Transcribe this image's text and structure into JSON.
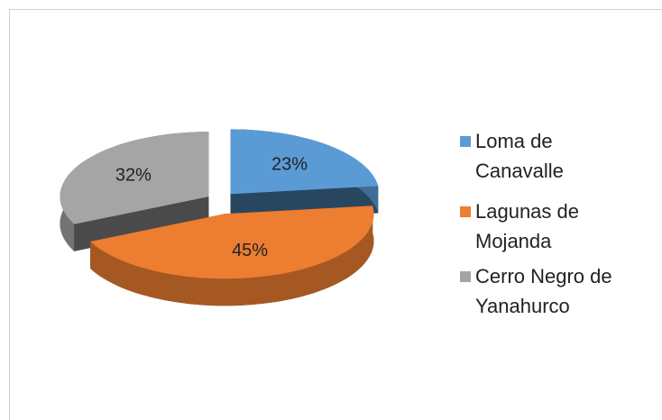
{
  "chart_data": {
    "type": "pie3d",
    "categories": [
      "Loma de Canavalle",
      "Lagunas de Mojanda",
      "Cerro Negro de Yanahurco"
    ],
    "values": [
      23,
      45,
      32
    ],
    "value_labels": [
      "23%",
      "45%",
      "32%"
    ],
    "colors": [
      "#5b9bd5",
      "#ed7d31",
      "#a5a5a5"
    ]
  }
}
